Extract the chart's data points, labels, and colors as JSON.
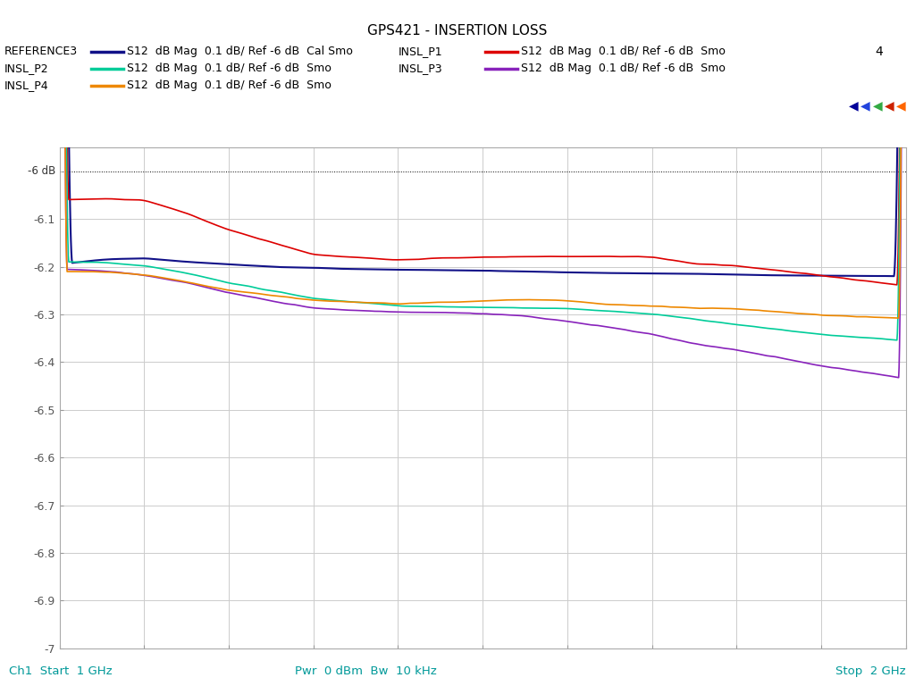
{
  "title": "GPS421 - INSERTION LOSS",
  "xlim": [
    1.0,
    2.0
  ],
  "ylim": [
    -7.0,
    -5.95
  ],
  "yticks": [
    -7.0,
    -6.9,
    -6.8,
    -6.7,
    -6.6,
    -6.5,
    -6.4,
    -6.3,
    -6.2,
    -6.1
  ],
  "ytick_labels": [
    "-7",
    "-6.9",
    "-6.8",
    "-6.7",
    "-6.6",
    "-6.5",
    "-6.4",
    "-6.3",
    "-6.2",
    "-6.1"
  ],
  "ref_line_y": -6.0,
  "ref_label": "-6 dB",
  "bottom_left": "Ch1  Start  1 GHz",
  "bottom_center": "Pwr  0 dBm  Bw  10 kHz",
  "bottom_right": "Stop  2 GHz",
  "legend_entries": [
    {
      "label": "REFERENCE3",
      "sublabel": "S12  dB Mag  0.1 dB/ Ref -6 dB  Cal Smo",
      "color": "#111188",
      "lw": 1.5
    },
    {
      "label": "INSL_P1",
      "sublabel": "S12  dB Mag  0.1 dB/ Ref -6 dB  Smo",
      "color": "#dd0000",
      "lw": 1.2
    },
    {
      "label": "INSL_P2",
      "sublabel": "S12  dB Mag  0.1 dB/ Ref -6 dB  Smo",
      "color": "#00cc99",
      "lw": 1.2
    },
    {
      "label": "INSL_P3",
      "sublabel": "S12  dB Mag  0.1 dB/ Ref -6 dB  Smo",
      "color": "#8822bb",
      "lw": 1.2
    },
    {
      "label": "INSL_P4",
      "sublabel": "S12  dB Mag  0.1 dB/ Ref -6 dB  Smo",
      "color": "#ee8800",
      "lw": 1.2
    }
  ],
  "extra_label": "4",
  "bg_color": "#ffffff",
  "grid_color": "#cccccc",
  "title_color": "#000000",
  "text_color_cyan": "#009999",
  "arrow_colors": [
    "#000099",
    "#2244dd",
    "#33aa44",
    "#cc2200",
    "#ff6600"
  ]
}
